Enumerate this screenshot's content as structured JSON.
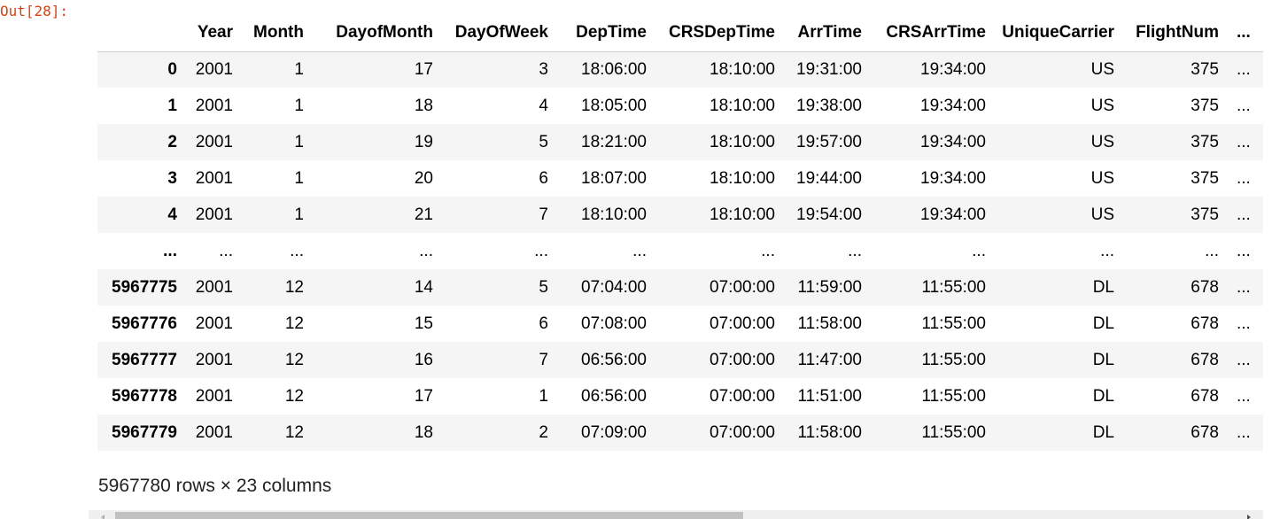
{
  "cell": {
    "prompt": "Out[28]:"
  },
  "dataframe": {
    "columns": [
      "Year",
      "Month",
      "DayofMonth",
      "DayOfWeek",
      "DepTime",
      "CRSDepTime",
      "ArrTime",
      "CRSArrTime",
      "UniqueCarrier",
      "FlightNum",
      "..."
    ],
    "rows": [
      {
        "index": "0",
        "cells": [
          "2001",
          "1",
          "17",
          "3",
          "18:06:00",
          "18:10:00",
          "19:31:00",
          "19:34:00",
          "US",
          "375",
          "..."
        ]
      },
      {
        "index": "1",
        "cells": [
          "2001",
          "1",
          "18",
          "4",
          "18:05:00",
          "18:10:00",
          "19:38:00",
          "19:34:00",
          "US",
          "375",
          "..."
        ]
      },
      {
        "index": "2",
        "cells": [
          "2001",
          "1",
          "19",
          "5",
          "18:21:00",
          "18:10:00",
          "19:57:00",
          "19:34:00",
          "US",
          "375",
          "..."
        ]
      },
      {
        "index": "3",
        "cells": [
          "2001",
          "1",
          "20",
          "6",
          "18:07:00",
          "18:10:00",
          "19:44:00",
          "19:34:00",
          "US",
          "375",
          "..."
        ]
      },
      {
        "index": "4",
        "cells": [
          "2001",
          "1",
          "21",
          "7",
          "18:10:00",
          "18:10:00",
          "19:54:00",
          "19:34:00",
          "US",
          "375",
          "..."
        ]
      },
      {
        "index": "...",
        "cells": [
          "...",
          "...",
          "...",
          "...",
          "...",
          "...",
          "...",
          "...",
          "...",
          "...",
          "..."
        ]
      },
      {
        "index": "5967775",
        "cells": [
          "2001",
          "12",
          "14",
          "5",
          "07:04:00",
          "07:00:00",
          "11:59:00",
          "11:55:00",
          "DL",
          "678",
          "..."
        ]
      },
      {
        "index": "5967776",
        "cells": [
          "2001",
          "12",
          "15",
          "6",
          "07:08:00",
          "07:00:00",
          "11:58:00",
          "11:55:00",
          "DL",
          "678",
          "..."
        ]
      },
      {
        "index": "5967777",
        "cells": [
          "2001",
          "12",
          "16",
          "7",
          "06:56:00",
          "07:00:00",
          "11:47:00",
          "11:55:00",
          "DL",
          "678",
          "..."
        ]
      },
      {
        "index": "5967778",
        "cells": [
          "2001",
          "12",
          "17",
          "1",
          "06:56:00",
          "07:00:00",
          "11:51:00",
          "11:55:00",
          "DL",
          "678",
          "..."
        ]
      },
      {
        "index": "5967779",
        "cells": [
          "2001",
          "12",
          "18",
          "2",
          "07:09:00",
          "07:00:00",
          "11:58:00",
          "11:55:00",
          "DL",
          "678",
          "..."
        ]
      }
    ],
    "shape_text": "5967780 rows × 23 columns"
  },
  "scrollbar": {
    "thumb_fraction": 0.56,
    "left_arrow_icon": "triangle-left-icon",
    "right_arrow_icon": "triangle-right-icon"
  },
  "colors": {
    "prompt": "#d84315",
    "stripe": "#f5f5f5",
    "header_border": "#d0d0d0"
  }
}
